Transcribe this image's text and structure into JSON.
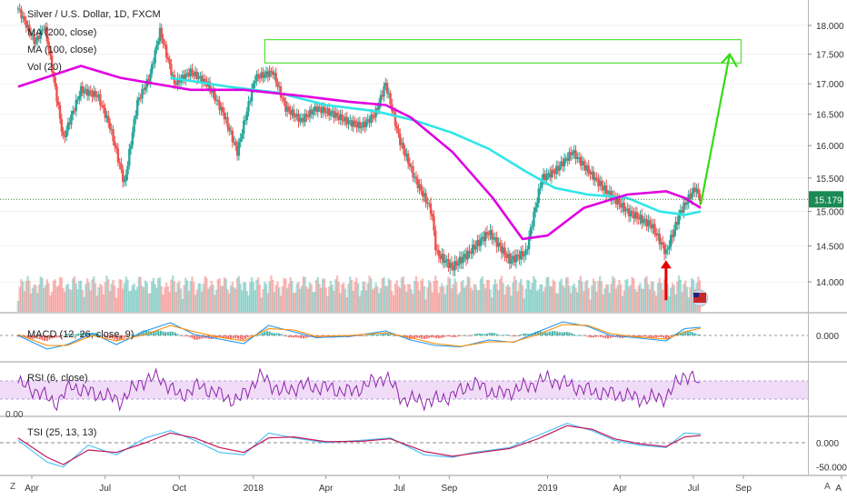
{
  "title": "Silver / U.S. Dollar, 1D, FXCM",
  "legends": {
    "ma200": "MA (200, close)",
    "ma100": "MA (100, close)",
    "vol": "Vol (20)",
    "macd": "MACD (12, 26, close, 9)",
    "rsi": "RSI (6, close)",
    "tsi": "TSI (25, 13, 13)"
  },
  "last_price_label": "15.179",
  "rsi_left_label": "0.00",
  "corner": {
    "left": "Z",
    "right": "A"
  },
  "colors": {
    "up": "#26a69a",
    "down": "#ef5350",
    "ma200": "#e000e0",
    "ma100": "#2ee6e6",
    "arrow_green": "#33dd11",
    "arrow_red": "#e60000",
    "macd_line": "#2196f3",
    "signal_line": "#ff8c00",
    "rsi": "#8e24aa",
    "rsi_band": "#f1dcf8",
    "tsi_line": "#4fc3f7",
    "tsi_signal": "#c2185b"
  },
  "chart_data": [
    {
      "type": "candlestick",
      "title": "Silver / U.S. Dollar, 1D, FXCM",
      "x_tick_labels": [
        "Apr",
        "Jul",
        "Oct",
        "2018",
        "Apr",
        "Jul",
        "Sep",
        "2019",
        "Apr",
        "Jul",
        "Sep",
        "A"
      ],
      "y_tick_labels": [
        "18.000",
        "17.500",
        "17.000",
        "16.500",
        "16.000",
        "15.500",
        "15.000",
        "14.500",
        "14.000"
      ],
      "ylim": [
        13.5,
        18.3
      ],
      "last_price": 15.179,
      "price_path": {
        "x": [
          "2017-03-15",
          "2017-04-05",
          "2017-04-17",
          "2017-05-10",
          "2017-06-01",
          "2017-06-22",
          "2017-07-07",
          "2017-07-25",
          "2017-08-10",
          "2017-08-25",
          "2017-09-07",
          "2017-09-25",
          "2017-10-15",
          "2017-11-05",
          "2017-11-25",
          "2017-12-12",
          "2018-01-03",
          "2018-01-25",
          "2018-02-10",
          "2018-03-01",
          "2018-03-20",
          "2018-04-11",
          "2018-04-25",
          "2018-05-15",
          "2018-06-01",
          "2018-06-14",
          "2018-07-01",
          "2018-07-20",
          "2018-08-10",
          "2018-08-16",
          "2018-09-05",
          "2018-09-25",
          "2018-10-20",
          "2018-11-15",
          "2018-12-05",
          "2018-12-25",
          "2019-01-10",
          "2019-02-01",
          "2019-02-21",
          "2019-03-15",
          "2019-04-10",
          "2019-05-10",
          "2019-05-28",
          "2019-06-15",
          "2019-07-03",
          "2019-07-10"
        ],
        "close": [
          18.3,
          17.7,
          18.0,
          16.1,
          16.9,
          16.8,
          16.3,
          15.4,
          16.7,
          17.1,
          17.9,
          17.0,
          17.2,
          17.0,
          16.5,
          15.9,
          17.1,
          17.2,
          16.6,
          16.4,
          16.6,
          16.5,
          16.4,
          16.3,
          16.5,
          17.0,
          16.1,
          15.5,
          15.0,
          14.4,
          14.2,
          14.4,
          14.7,
          14.3,
          14.4,
          15.5,
          15.6,
          15.9,
          15.6,
          15.3,
          15.0,
          14.8,
          14.4,
          15.0,
          15.35,
          15.18
        ]
      },
      "ma200": {
        "x": [
          "2017-03-15",
          "2017-06-01",
          "2017-07-20",
          "2017-10-15",
          "2017-12-20",
          "2018-03-01",
          "2018-05-01",
          "2018-06-14",
          "2018-07-15",
          "2018-09-05",
          "2018-10-25",
          "2018-12-01",
          "2019-01-01",
          "2019-02-15",
          "2019-04-10",
          "2019-05-28",
          "2019-06-20",
          "2019-07-10"
        ],
        "values": [
          16.95,
          17.3,
          17.1,
          16.9,
          16.9,
          16.8,
          16.7,
          16.65,
          16.45,
          15.9,
          15.2,
          14.6,
          14.65,
          15.05,
          15.25,
          15.3,
          15.2,
          15.05
        ]
      },
      "ma100": {
        "x": [
          "2017-09-20",
          "2017-12-01",
          "2018-02-01",
          "2018-04-01",
          "2018-06-01",
          "2018-07-20",
          "2018-09-05",
          "2018-10-20",
          "2018-12-05",
          "2019-01-10",
          "2019-02-20",
          "2019-04-10",
          "2019-05-20",
          "2019-06-20",
          "2019-07-10"
        ],
        "values": [
          17.1,
          16.95,
          16.85,
          16.65,
          16.55,
          16.4,
          16.2,
          15.95,
          15.6,
          15.35,
          15.25,
          15.2,
          15.0,
          14.95,
          15.0
        ]
      },
      "target_zone": {
        "x": [
          "2018-01-15",
          "2019-08-29"
        ],
        "y": [
          17.35,
          17.75
        ]
      },
      "green_arrow": {
        "x": [
          "2019-07-10",
          "2019-08-15"
        ],
        "y": [
          15.1,
          17.5
        ]
      },
      "red_arrow": {
        "x": [
          "2019-05-28",
          "2019-05-28"
        ],
        "y": [
          13.75,
          14.3
        ]
      }
    },
    {
      "type": "line",
      "title": "MACD (12, 26, close, 9)",
      "y_tick_labels": [
        "0.000"
      ],
      "ylim": [
        -0.5,
        0.4
      ],
      "series": [
        {
          "name": "MACD",
          "x": [
            "2017-03-15",
            "2017-04-20",
            "2017-05-15",
            "2017-06-15",
            "2017-07-15",
            "2017-08-20",
            "2017-09-20",
            "2017-10-20",
            "2017-11-20",
            "2017-12-20",
            "2018-01-20",
            "2018-02-20",
            "2018-03-20",
            "2018-05-01",
            "2018-06-14",
            "2018-07-15",
            "2018-08-15",
            "2018-09-15",
            "2018-10-20",
            "2018-11-20",
            "2018-12-20",
            "2019-01-20",
            "2019-02-20",
            "2019-03-20",
            "2019-04-20",
            "2019-05-28",
            "2019-06-20",
            "2019-07-10"
          ],
          "values": [
            0.0,
            -0.3,
            -0.2,
            0.05,
            -0.2,
            0.1,
            0.28,
            0.02,
            -0.08,
            -0.18,
            0.22,
            0.08,
            -0.05,
            -0.02,
            0.1,
            -0.1,
            -0.22,
            -0.25,
            -0.1,
            -0.15,
            0.08,
            0.3,
            0.2,
            0.0,
            -0.05,
            -0.12,
            0.15,
            0.18
          ]
        },
        {
          "name": "Signal",
          "x": [
            "2017-03-15",
            "2017-04-20",
            "2017-05-15",
            "2017-06-15",
            "2017-07-15",
            "2017-08-20",
            "2017-09-20",
            "2017-10-20",
            "2017-11-20",
            "2017-12-20",
            "2018-01-20",
            "2018-02-20",
            "2018-03-20",
            "2018-05-01",
            "2018-06-14",
            "2018-07-15",
            "2018-08-15",
            "2018-09-15",
            "2018-10-20",
            "2018-11-20",
            "2018-12-20",
            "2019-01-20",
            "2019-02-20",
            "2019-03-20",
            "2019-04-20",
            "2019-05-28",
            "2019-06-20",
            "2019-07-10"
          ],
          "values": [
            0.02,
            -0.22,
            -0.22,
            0.0,
            -0.12,
            0.02,
            0.22,
            0.08,
            -0.04,
            -0.12,
            0.15,
            0.12,
            -0.02,
            0.0,
            0.06,
            -0.05,
            -0.18,
            -0.24,
            -0.14,
            -0.14,
            0.02,
            0.24,
            0.22,
            0.04,
            -0.03,
            -0.08,
            0.08,
            0.16
          ]
        }
      ]
    },
    {
      "type": "line",
      "title": "RSI (6, close)",
      "y_tick_labels": [],
      "ylim": [
        0,
        100
      ],
      "band": [
        30,
        70
      ],
      "series": [
        {
          "name": "RSI",
          "x": [
            "2017-03-15",
            "2017-04-10",
            "2017-05-01",
            "2017-05-20",
            "2017-06-10",
            "2017-07-01",
            "2017-07-20",
            "2017-08-15",
            "2017-09-07",
            "2017-10-01",
            "2017-10-25",
            "2017-11-20",
            "2017-12-12",
            "2018-01-10",
            "2018-02-05",
            "2018-03-01",
            "2018-04-01",
            "2018-05-01",
            "2018-06-14",
            "2018-07-05",
            "2018-08-10",
            "2018-09-05",
            "2018-10-01",
            "2018-11-01",
            "2018-12-01",
            "2019-01-01",
            "2019-01-30",
            "2019-03-01",
            "2019-04-01",
            "2019-05-01",
            "2019-05-28",
            "2019-06-20",
            "2019-07-03",
            "2019-07-10"
          ],
          "values": [
            65,
            45,
            20,
            60,
            45,
            38,
            25,
            70,
            78,
            35,
            60,
            40,
            25,
            82,
            45,
            60,
            55,
            45,
            80,
            30,
            25,
            38,
            65,
            40,
            55,
            75,
            60,
            45,
            40,
            30,
            35,
            85,
            75,
            45
          ]
        }
      ]
    },
    {
      "type": "line",
      "title": "TSI (25, 13, 13)",
      "y_tick_labels": [
        "0.000",
        "-50.000"
      ],
      "ylim": [
        -60,
        45
      ],
      "series": [
        {
          "name": "TSI",
          "x": [
            "2017-03-15",
            "2017-04-20",
            "2017-05-10",
            "2017-06-10",
            "2017-07-15",
            "2017-08-20",
            "2017-09-20",
            "2017-10-20",
            "2017-11-20",
            "2017-12-20",
            "2018-01-20",
            "2018-02-20",
            "2018-04-01",
            "2018-05-15",
            "2018-06-20",
            "2018-08-01",
            "2018-09-05",
            "2018-10-01",
            "2018-11-15",
            "2018-12-20",
            "2019-01-25",
            "2019-02-25",
            "2019-03-25",
            "2019-04-25",
            "2019-05-28",
            "2019-06-20",
            "2019-07-10"
          ],
          "values": [
            5,
            -40,
            -50,
            -5,
            -25,
            10,
            25,
            5,
            -20,
            -25,
            20,
            10,
            0,
            5,
            10,
            -25,
            -30,
            -20,
            -10,
            15,
            40,
            25,
            5,
            -5,
            -10,
            20,
            18
          ]
        },
        {
          "name": "Signal",
          "x": [
            "2017-03-15",
            "2017-04-20",
            "2017-05-10",
            "2017-06-10",
            "2017-07-15",
            "2017-08-20",
            "2017-09-20",
            "2017-10-20",
            "2017-11-20",
            "2017-12-20",
            "2018-01-20",
            "2018-02-20",
            "2018-04-01",
            "2018-05-15",
            "2018-06-20",
            "2018-08-01",
            "2018-09-05",
            "2018-10-01",
            "2018-11-15",
            "2018-12-20",
            "2019-01-25",
            "2019-02-25",
            "2019-03-25",
            "2019-04-25",
            "2019-05-28",
            "2019-06-20",
            "2019-07-10"
          ],
          "values": [
            10,
            -30,
            -45,
            -15,
            -20,
            0,
            20,
            10,
            -10,
            -20,
            10,
            12,
            2,
            3,
            8,
            -18,
            -28,
            -22,
            -12,
            8,
            35,
            28,
            8,
            -2,
            -8,
            12,
            15
          ]
        }
      ]
    }
  ]
}
